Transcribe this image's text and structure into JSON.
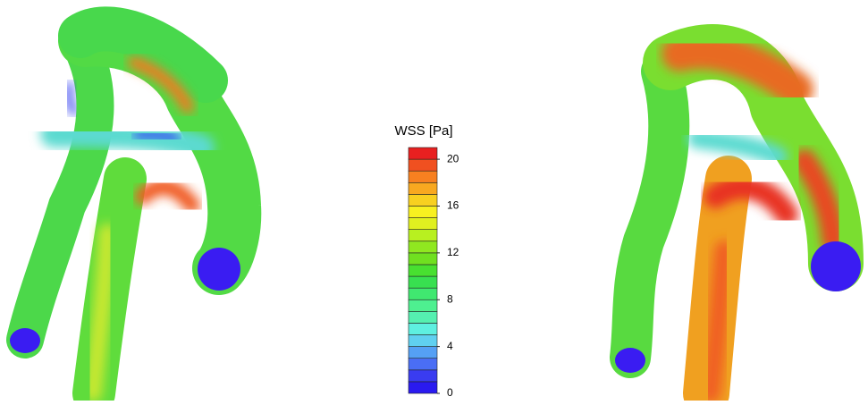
{
  "chart_data": {
    "type": "colorbar",
    "title": "WSS [Pa]",
    "ylim": [
      0,
      21
    ],
    "yticks": [
      0,
      4,
      8,
      12,
      16,
      20
    ],
    "colors": [
      "#2a1af0",
      "#3a3cf0",
      "#4a6ef5",
      "#55a0f5",
      "#60d0f0",
      "#5ef0e0",
      "#55f0b0",
      "#4ef090",
      "#40e870",
      "#38e050",
      "#48e030",
      "#70e020",
      "#90e820",
      "#b8f020",
      "#e0f020",
      "#f8f020",
      "#f8d020",
      "#f8a820",
      "#f88020",
      "#f05020",
      "#e82020"
    ]
  }
}
